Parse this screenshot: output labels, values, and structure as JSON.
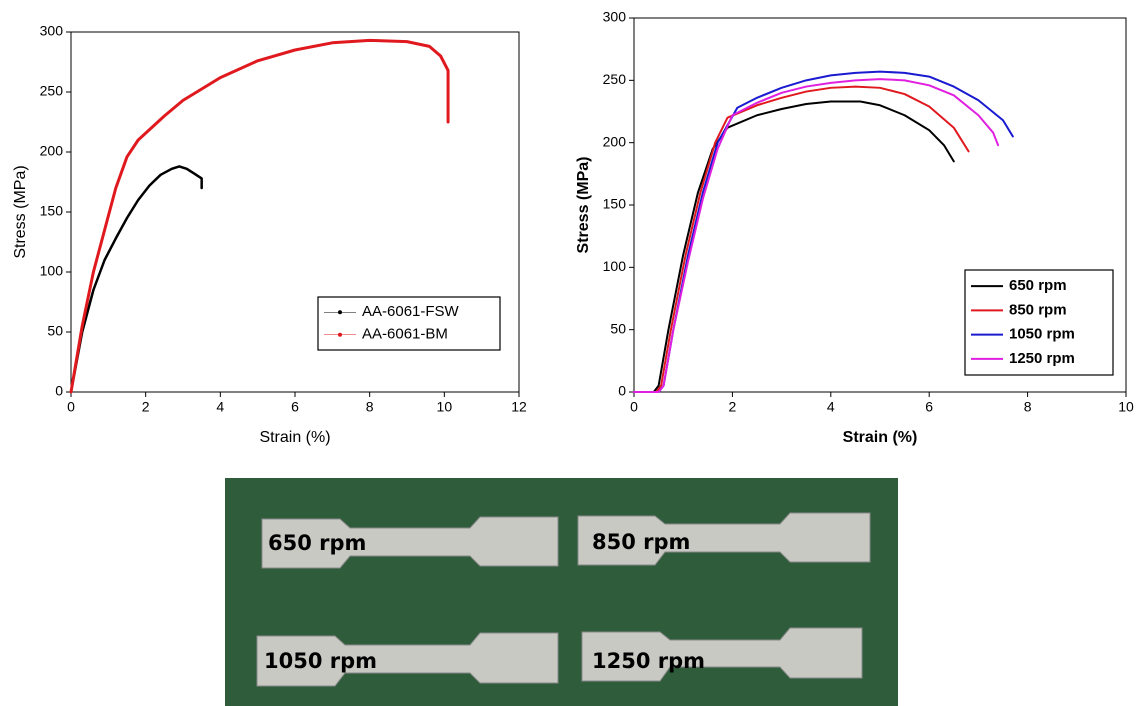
{
  "chart_data": [
    {
      "type": "line",
      "xlabel": "Strain (%)",
      "ylabel": "Stress (MPa)",
      "xlim": [
        0,
        12
      ],
      "xticks": [
        0,
        2,
        4,
        6,
        8,
        10,
        12
      ],
      "ylim": [
        0,
        300
      ],
      "yticks": [
        0,
        50,
        100,
        150,
        200,
        250,
        300
      ],
      "legend": "lower right",
      "series": [
        {
          "name": "AA-6061-FSW",
          "color": "#000000",
          "x": [
            0,
            0.3,
            0.6,
            0.9,
            1.2,
            1.5,
            1.8,
            2.1,
            2.4,
            2.7,
            2.9,
            3.1,
            3.3,
            3.5,
            3.5
          ],
          "values": [
            0,
            50,
            85,
            110,
            128,
            145,
            160,
            172,
            181,
            186,
            188,
            186,
            182,
            178,
            170
          ]
        },
        {
          "name": "AA-6061-BM",
          "color": "#e0191f",
          "x": [
            0,
            0.3,
            0.6,
            0.9,
            1.2,
            1.5,
            1.8,
            2.5,
            3,
            4,
            5,
            6,
            7,
            8,
            9,
            9.6,
            9.9,
            10.1,
            10.1
          ],
          "values": [
            0,
            55,
            100,
            135,
            170,
            196,
            210,
            230,
            243,
            262,
            276,
            285,
            291,
            293,
            292,
            288,
            280,
            268,
            225
          ]
        }
      ]
    },
    {
      "type": "line",
      "xlabel": "Strain (%)",
      "ylabel": "Stress (MPa)",
      "xlim": [
        0,
        10
      ],
      "xticks": [
        0,
        2,
        4,
        6,
        8,
        10
      ],
      "ylim": [
        0,
        300
      ],
      "yticks": [
        0,
        50,
        100,
        150,
        200,
        250,
        300
      ],
      "legend": "lower right",
      "series": [
        {
          "name": "650 rpm",
          "color": "#000000",
          "x": [
            0,
            0.4,
            0.5,
            0.7,
            1.0,
            1.3,
            1.6,
            1.9,
            2.5,
            3,
            3.5,
            4,
            4.6,
            5,
            5.5,
            6,
            6.3,
            6.5
          ],
          "values": [
            0,
            0,
            5,
            50,
            110,
            160,
            195,
            212,
            222,
            227,
            231,
            233,
            233,
            230,
            222,
            210,
            198,
            185
          ]
        },
        {
          "name": "850 rpm",
          "color": "#e0191f",
          "x": [
            0,
            0.45,
            0.55,
            0.75,
            1.05,
            1.35,
            1.65,
            1.9,
            2.5,
            3,
            3.5,
            4,
            4.5,
            5,
            5.5,
            6,
            6.5,
            6.8
          ],
          "values": [
            0,
            0,
            5,
            50,
            110,
            160,
            200,
            220,
            230,
            236,
            241,
            244,
            245,
            244,
            239,
            229,
            212,
            193
          ]
        },
        {
          "name": "1050 rpm",
          "color": "#1a1ad0",
          "x": [
            0,
            0.5,
            0.6,
            0.8,
            1.1,
            1.4,
            1.7,
            2.1,
            2.5,
            3,
            3.5,
            4,
            4.5,
            5,
            5.5,
            6,
            6.5,
            7,
            7.5,
            7.7
          ],
          "values": [
            0,
            0,
            5,
            50,
            110,
            160,
            200,
            228,
            236,
            244,
            250,
            254,
            256,
            257,
            256,
            253,
            245,
            234,
            218,
            205
          ]
        },
        {
          "name": "1250 rpm",
          "color": "#e020e0",
          "x": [
            0,
            0.5,
            0.6,
            0.8,
            1.1,
            1.4,
            1.7,
            2,
            2.5,
            3,
            3.5,
            4,
            4.5,
            5,
            5.5,
            6,
            6.5,
            7,
            7.3,
            7.4
          ],
          "values": [
            0,
            0,
            5,
            50,
            105,
            155,
            195,
            222,
            232,
            240,
            245,
            248,
            250,
            251,
            250,
            246,
            238,
            222,
            208,
            198
          ]
        }
      ]
    }
  ],
  "photo": {
    "labels": [
      "650 rpm",
      "850 rpm",
      "1050 rpm",
      "1250 rpm"
    ]
  }
}
